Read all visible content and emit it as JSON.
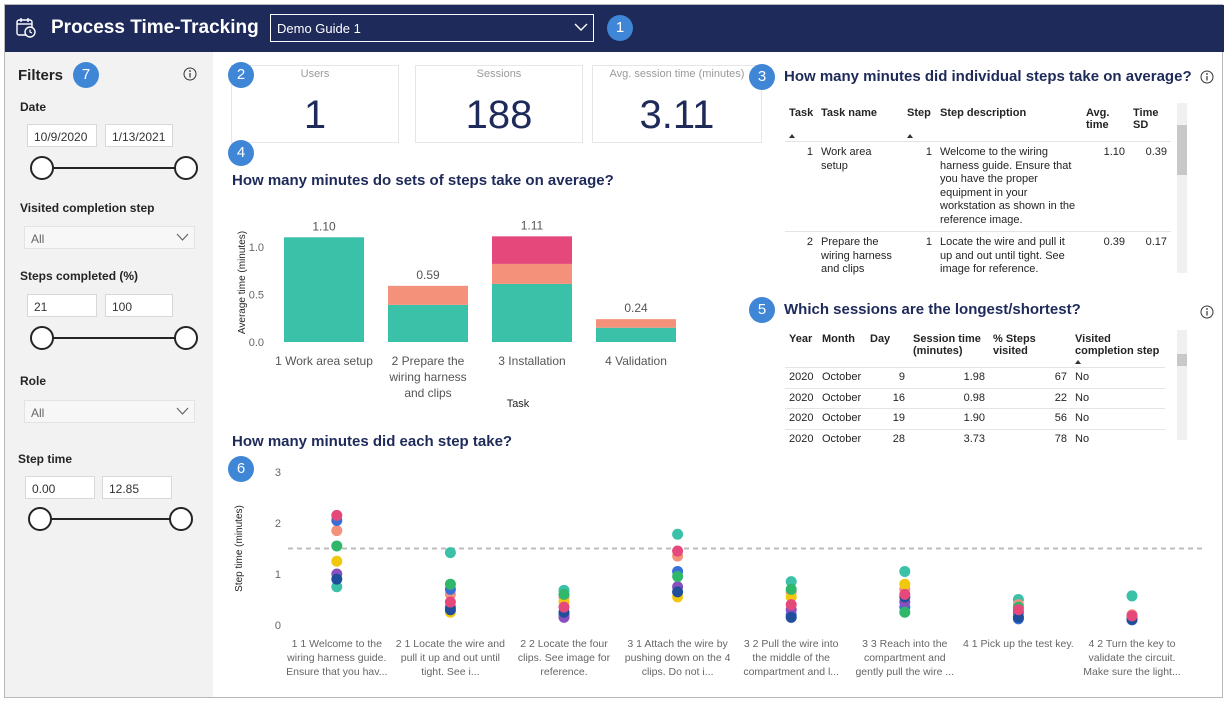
{
  "header": {
    "title": "Process Time-Tracking",
    "dropdown": "Demo Guide 1",
    "badge": "1"
  },
  "filters": {
    "title": "Filters",
    "badge": "7",
    "date": {
      "label": "Date",
      "from": "10/9/2020",
      "to": "1/13/2021"
    },
    "visited_step": {
      "label": "Visited completion step",
      "value": "All"
    },
    "steps_completed": {
      "label": "Steps completed (%)",
      "from": "21",
      "to": "100"
    },
    "role": {
      "label": "Role",
      "value": "All"
    },
    "step_time": {
      "label": "Step time",
      "from": "0.00",
      "to": "12.85"
    }
  },
  "kpis": {
    "badge": "2",
    "cards": [
      {
        "label": "Users",
        "value": "1"
      },
      {
        "label": "Sessions",
        "value": "188"
      },
      {
        "label": "Avg. session time (minutes)",
        "value": "3.11"
      }
    ]
  },
  "step_table": {
    "badge": "3",
    "title": "How many minutes did individual steps take on average?",
    "columns": [
      "Task",
      "Task name",
      "Step",
      "Step description",
      "Avg. time",
      "Time SD"
    ],
    "rows": [
      [
        "1",
        "Work area setup",
        "1",
        "Welcome to the wiring harness guide. Ensure that you have the proper equipment in your workstation as shown in the reference image.",
        "1.10",
        "0.39"
      ],
      [
        "2",
        "Prepare the wiring harness and clips",
        "1",
        "Locate the wire and pull it up and out until tight. See image for reference.",
        "0.39",
        "0.17"
      ]
    ]
  },
  "session_table": {
    "badge": "5",
    "title": "Which sessions are the longest/shortest?",
    "columns": [
      "Year",
      "Month",
      "Day",
      "Session time (minutes)",
      "% Steps visited",
      "Visited completion step"
    ],
    "rows": [
      [
        "2020",
        "October",
        "9",
        "1.98",
        "67",
        "No"
      ],
      [
        "2020",
        "October",
        "16",
        "0.98",
        "22",
        "No"
      ],
      [
        "2020",
        "October",
        "19",
        "1.90",
        "56",
        "No"
      ],
      [
        "2020",
        "October",
        "28",
        "3.73",
        "78",
        "No"
      ]
    ]
  },
  "chart_data": [
    {
      "type": "bar",
      "stacked": true,
      "badge": "4",
      "title": "How many minutes do sets of steps take on average?",
      "x_label": "Task",
      "y_label": "Average time (minutes)",
      "categories": [
        "1 Work area setup",
        "2 Prepare the wiring harness and clips",
        "3 Installation",
        "4 Validation"
      ],
      "series": [
        {
          "color": "#3cc1a9",
          "values": [
            1.1,
            0.39,
            0.61,
            0.15
          ]
        },
        {
          "color": "#f4917b",
          "values": [
            null,
            0.2,
            0.21,
            0.09
          ]
        },
        {
          "color": "#e5497c",
          "values": [
            null,
            null,
            0.29,
            null
          ]
        }
      ],
      "total_labels": [
        "1.10",
        "0.59",
        "1.11",
        "0.24"
      ],
      "ylim": [
        0,
        1.25
      ],
      "yticks": [
        {
          "value": 0,
          "label": "0.0"
        },
        {
          "value": 0.5,
          "label": "0.5"
        },
        {
          "value": 1,
          "label": "1.0"
        }
      ]
    },
    {
      "type": "scatter",
      "badge": "6",
      "title": "How many minutes did each step take?",
      "y_label": "Step time (minutes)",
      "categories": [
        "1 1 Welcome to the wiring harness guide. Ensure that you hav...",
        "2 1 Locate the wire and pull it up and out until tight. See i...",
        "2 2 Locate the four clips. See image for reference.",
        "3 1 Attach the wire by pushing down on the 4 clips. Do not i...",
        "3 2 Pull the wire into the middle of the compartment and l...",
        "3 3 Reach into the compartment and gently pull the wire ...",
        "4 1 Pick up the test key.",
        "4 2 Turn the key to validate the circuit. Make sure the light..."
      ],
      "series": [
        {
          "color": "#3cc1a9",
          "values": [
            0.75,
            1.42,
            0.68,
            1.78,
            0.85,
            1.05,
            0.5,
            0.57
          ]
        },
        {
          "color": "#f4917b",
          "values": [
            1.85,
            0.6,
            0.55,
            1.35,
            0.65,
            0.7,
            0.4,
            0.2
          ]
        },
        {
          "color": "#3a6fd8",
          "values": [
            2.05,
            0.7,
            0.2,
            1.05,
            0.2,
            0.35,
            0.12,
            0.1
          ]
        },
        {
          "color": "#f2c80f",
          "values": [
            1.25,
            0.25,
            0.45,
            0.55,
            0.55,
            0.8,
            0.2,
            0.15
          ]
        },
        {
          "color": "#8a4fbf",
          "values": [
            1.0,
            0.35,
            0.15,
            0.75,
            0.3,
            0.45,
            0.25,
            0.12
          ]
        },
        {
          "color": "#2fb86b",
          "values": [
            1.55,
            0.8,
            0.6,
            0.95,
            0.7,
            0.25,
            0.35,
            0.14
          ]
        },
        {
          "color": "#1f4e9a",
          "values": [
            0.9,
            0.3,
            0.25,
            0.65,
            0.15,
            0.55,
            0.15,
            0.11
          ]
        },
        {
          "color": "#e5497c",
          "values": [
            2.15,
            0.45,
            0.35,
            1.45,
            0.4,
            0.6,
            0.3,
            0.18
          ]
        }
      ],
      "reference_line": 1.5,
      "ylim": [
        0,
        3
      ],
      "yticks": [
        0,
        1,
        2,
        3
      ]
    }
  ]
}
